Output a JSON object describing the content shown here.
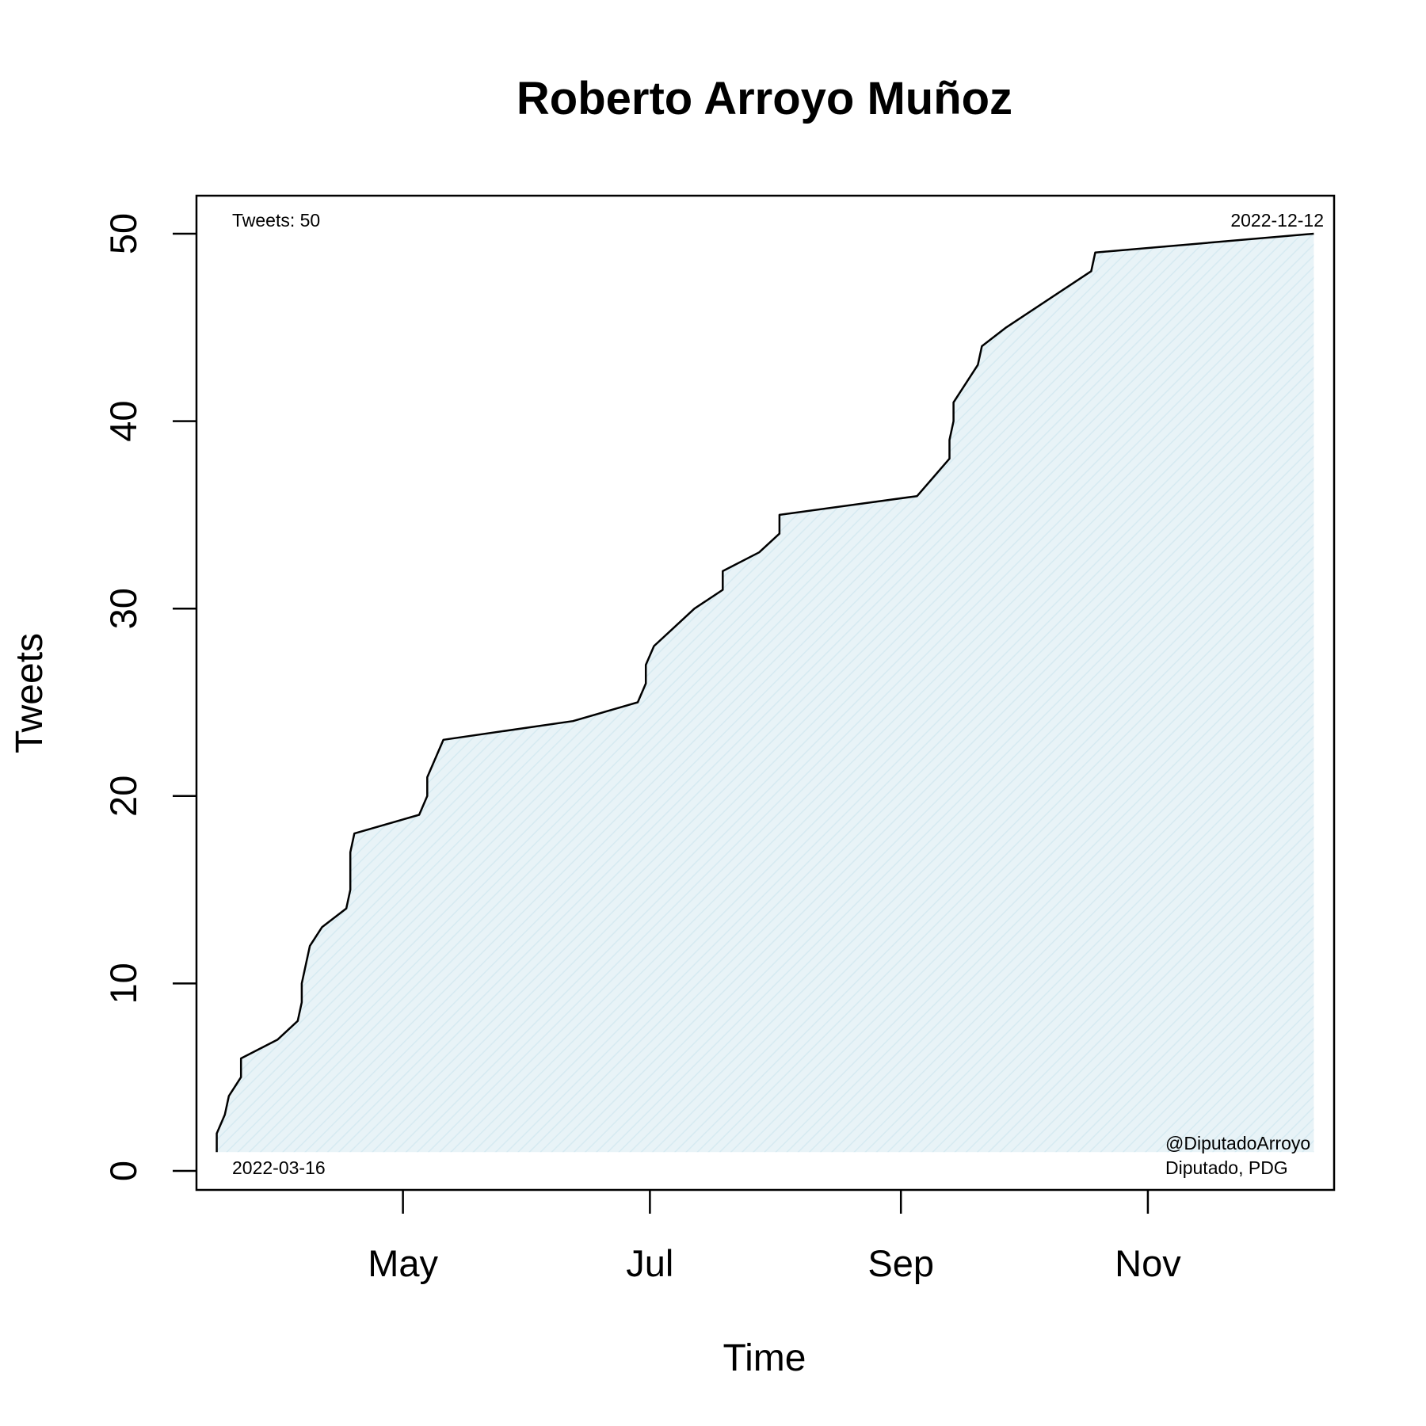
{
  "chart_data": {
    "type": "area",
    "title": "Roberto Arroyo Muñoz",
    "xlabel": "Time",
    "ylabel": "Tweets",
    "x_type": "date",
    "xlim": [
      "2022-03-11",
      "2022-12-17"
    ],
    "ylim": [
      0,
      52
    ],
    "x_ticks": [
      {
        "date": "2022-05-01",
        "label": "May"
      },
      {
        "date": "2022-07-01",
        "label": "Jul"
      },
      {
        "date": "2022-09-01",
        "label": "Sep"
      },
      {
        "date": "2022-11-01",
        "label": "Nov"
      }
    ],
    "y_ticks": [
      0,
      10,
      20,
      30,
      40,
      50
    ],
    "grid": false,
    "legend": null,
    "colors": {
      "line": "#000000",
      "fill": "#e8f3f7",
      "hatch": "#d6eaf1"
    },
    "annotations": {
      "top_left": "Tweets: 50",
      "top_right": "2022-12-12",
      "bottom_left": "2022-03-16",
      "bottom_right_line1": "@DiputadoArroyo",
      "bottom_right_line2": "Diputado, PDG"
    },
    "series": [
      {
        "x": [
          "2022-03-16",
          "2022-03-16",
          "2022-03-18",
          "2022-03-19",
          "2022-03-22",
          "2022-03-22",
          "2022-03-31",
          "2022-04-05",
          "2022-04-06",
          "2022-04-06",
          "2022-04-08",
          "2022-04-11",
          "2022-04-17",
          "2022-04-18",
          "2022-04-18",
          "2022-04-19",
          "2022-05-05",
          "2022-05-07",
          "2022-05-07",
          "2022-05-11",
          "2022-06-12",
          "2022-06-28",
          "2022-06-30",
          "2022-06-30",
          "2022-07-02",
          "2022-07-07",
          "2022-07-12",
          "2022-07-19",
          "2022-07-19",
          "2022-07-28",
          "2022-08-02",
          "2022-08-02",
          "2022-09-05",
          "2022-09-13",
          "2022-09-13",
          "2022-09-14",
          "2022-09-14",
          "2022-09-20",
          "2022-09-21",
          "2022-09-27",
          "2022-10-18",
          "2022-10-19",
          "2022-12-12"
        ],
        "y": [
          1,
          2,
          3,
          4,
          5,
          6,
          7,
          8,
          9,
          10,
          12,
          13,
          14,
          15,
          17,
          18,
          19,
          20,
          21,
          23,
          24,
          25,
          26,
          27,
          28,
          29,
          30,
          31,
          32,
          33,
          34,
          35,
          36,
          38,
          39,
          40,
          41,
          43,
          44,
          45,
          48,
          49,
          50
        ]
      }
    ]
  }
}
